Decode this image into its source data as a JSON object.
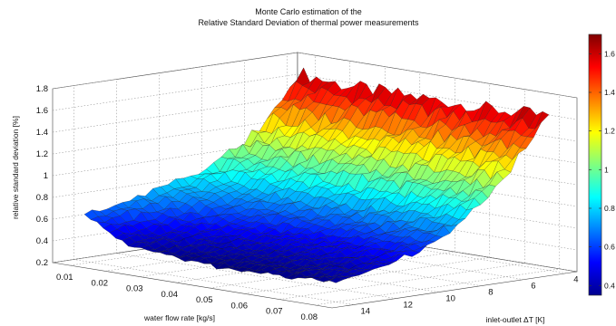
{
  "chart_data": {
    "type": "surface",
    "title": [
      "Monte Carlo estimation of the",
      "Relative Standard Deviation of thermal power measurements"
    ],
    "xlabel": "water flow rate [kg/s]",
    "ylabel": "inlet-outlet ΔT [K]",
    "zlabel": "relative standard deviation [%]",
    "x_ticks": [
      "0.01",
      "0.02",
      "0.03",
      "0.04",
      "0.05",
      "0.06",
      "0.07",
      "0.08"
    ],
    "y_ticks": [
      "4",
      "6",
      "8",
      "10",
      "12",
      "14"
    ],
    "z_ticks": [
      "0.2",
      "0.4",
      "0.6",
      "0.8",
      "1",
      "1.2",
      "1.4",
      "1.6",
      "1.8"
    ],
    "xlim": [
      0.005,
      0.085
    ],
    "ylim": [
      3.5,
      15
    ],
    "zlim": [
      0.2,
      1.8
    ],
    "colormap": "jet",
    "colorbar": {
      "ticks": [
        "0.4",
        "0.6",
        "0.8",
        "1",
        "1.2",
        "1.4",
        "1.6"
      ],
      "range": [
        0.35,
        1.7
      ]
    },
    "grid": true,
    "surface": {
      "x": [
        0.008,
        0.02,
        0.035,
        0.05,
        0.065,
        0.08
      ],
      "y": [
        4,
        6,
        8,
        10,
        12,
        14
      ],
      "z": [
        [
          1.65,
          1.6,
          1.6,
          1.6,
          1.6,
          1.62
        ],
        [
          1.15,
          1.12,
          1.1,
          1.1,
          1.12,
          1.15
        ],
        [
          0.9,
          0.82,
          0.75,
          0.72,
          0.74,
          0.78
        ],
        [
          0.78,
          0.62,
          0.55,
          0.52,
          0.54,
          0.56
        ],
        [
          0.7,
          0.5,
          0.44,
          0.42,
          0.43,
          0.45
        ],
        [
          0.62,
          0.42,
          0.36,
          0.34,
          0.36,
          0.38
        ]
      ]
    }
  }
}
